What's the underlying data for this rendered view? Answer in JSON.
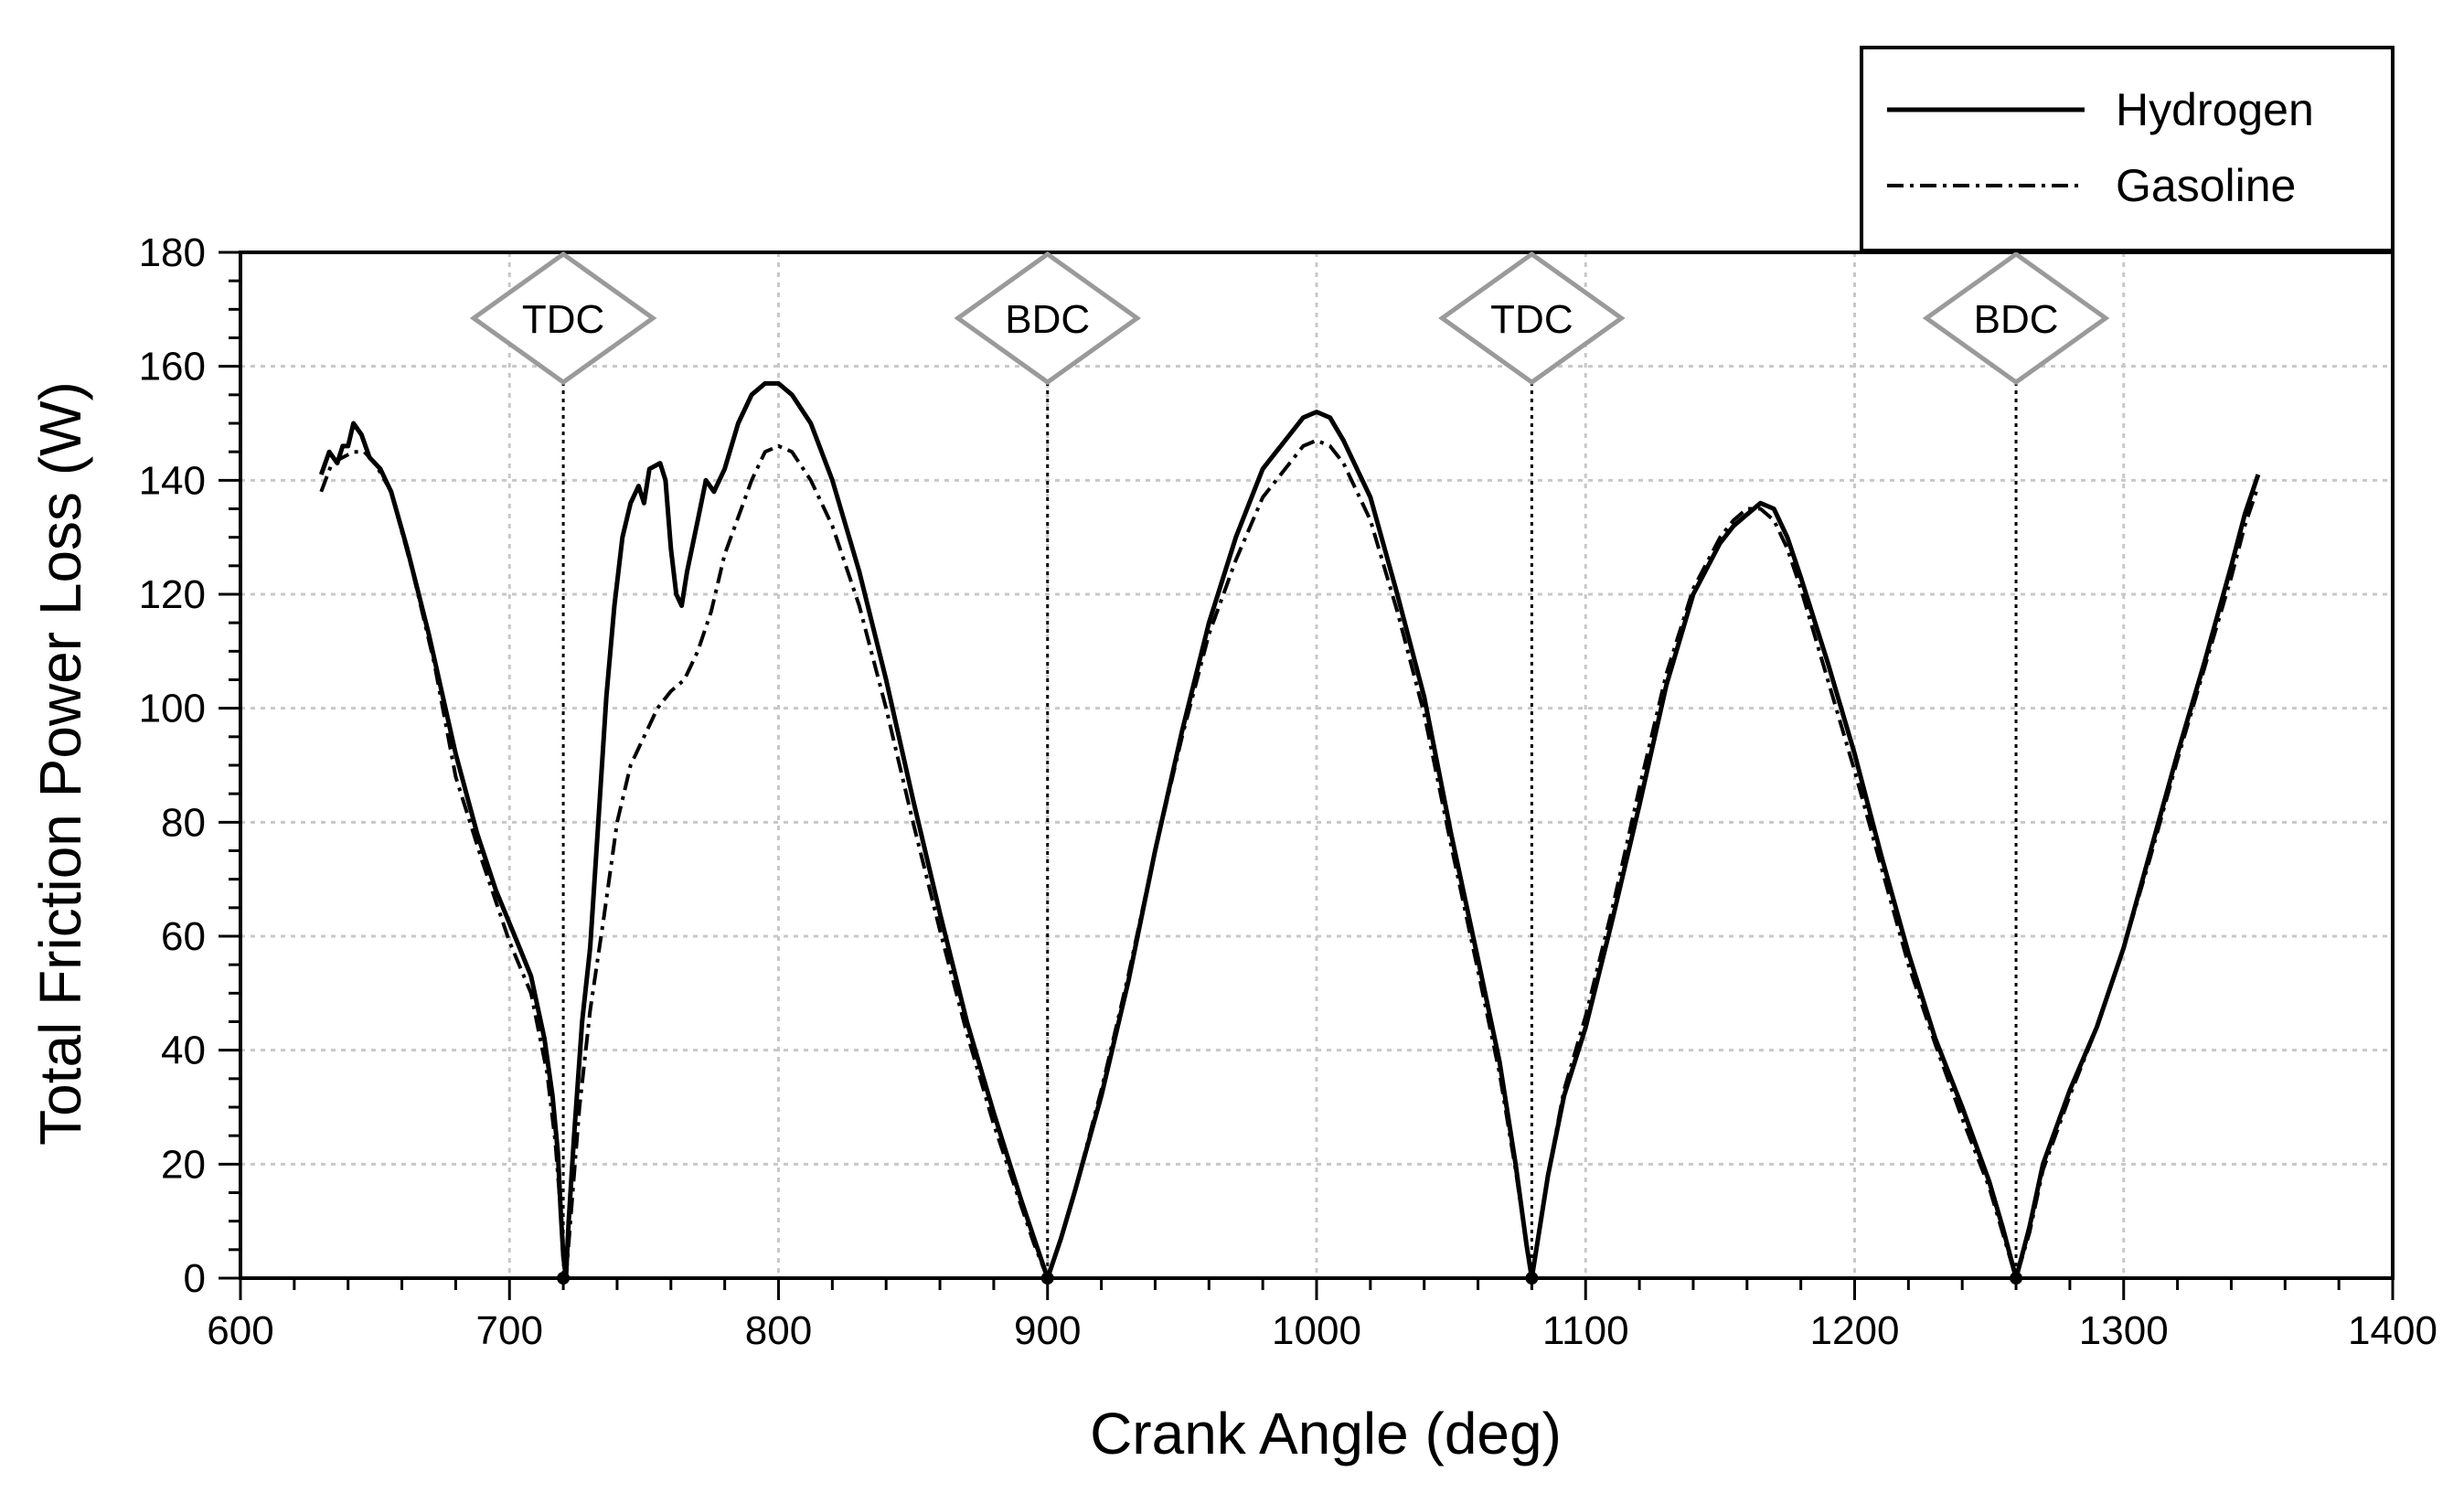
{
  "chart_data": {
    "type": "line",
    "title": "",
    "xlabel": "Crank Angle (deg)",
    "ylabel": "Total Friction Power Loss (W)",
    "xlim": [
      600,
      1400
    ],
    "ylim": [
      0,
      180
    ],
    "xticks": [
      600,
      700,
      800,
      900,
      1000,
      1100,
      1200,
      1300,
      1400
    ],
    "yticks": [
      0,
      20,
      40,
      60,
      80,
      100,
      120,
      140,
      160,
      180
    ],
    "grid": true,
    "legend_position": "top-right",
    "series": [
      {
        "name": "Hydrogen",
        "style": "solid",
        "color": "#000000",
        "points": [
          [
            630,
            141
          ],
          [
            633,
            145
          ],
          [
            636,
            143
          ],
          [
            638,
            146
          ],
          [
            640,
            146
          ],
          [
            642,
            150
          ],
          [
            645,
            148
          ],
          [
            648,
            144
          ],
          [
            652,
            142
          ],
          [
            656,
            138
          ],
          [
            662,
            128
          ],
          [
            670,
            113
          ],
          [
            680,
            92
          ],
          [
            688,
            78
          ],
          [
            695,
            68
          ],
          [
            702,
            60
          ],
          [
            708,
            53
          ],
          [
            713,
            42
          ],
          [
            716,
            32
          ],
          [
            718,
            22
          ],
          [
            719,
            12
          ],
          [
            720,
            4
          ],
          [
            721,
            0
          ],
          [
            722,
            10
          ],
          [
            724,
            25
          ],
          [
            727,
            45
          ],
          [
            730,
            58
          ],
          [
            733,
            80
          ],
          [
            736,
            102
          ],
          [
            739,
            118
          ],
          [
            742,
            130
          ],
          [
            745,
            136
          ],
          [
            748,
            139
          ],
          [
            750,
            136
          ],
          [
            752,
            142
          ],
          [
            756,
            143
          ],
          [
            758,
            140
          ],
          [
            760,
            128
          ],
          [
            762,
            120
          ],
          [
            764,
            118
          ],
          [
            766,
            124
          ],
          [
            770,
            133
          ],
          [
            773,
            140
          ],
          [
            776,
            138
          ],
          [
            780,
            142
          ],
          [
            785,
            150
          ],
          [
            790,
            155
          ],
          [
            795,
            157
          ],
          [
            800,
            157
          ],
          [
            805,
            155
          ],
          [
            812,
            150
          ],
          [
            820,
            140
          ],
          [
            830,
            124
          ],
          [
            840,
            105
          ],
          [
            850,
            84
          ],
          [
            860,
            64
          ],
          [
            870,
            45
          ],
          [
            880,
            29
          ],
          [
            890,
            14
          ],
          [
            895,
            7
          ],
          [
            900,
            0
          ],
          [
            905,
            7
          ],
          [
            910,
            15
          ],
          [
            920,
            32
          ],
          [
            930,
            52
          ],
          [
            940,
            75
          ],
          [
            950,
            96
          ],
          [
            960,
            115
          ],
          [
            970,
            130
          ],
          [
            980,
            142
          ],
          [
            990,
            148
          ],
          [
            995,
            151
          ],
          [
            1000,
            152
          ],
          [
            1005,
            151
          ],
          [
            1010,
            147
          ],
          [
            1020,
            137
          ],
          [
            1030,
            120
          ],
          [
            1040,
            102
          ],
          [
            1050,
            78
          ],
          [
            1060,
            56
          ],
          [
            1068,
            38
          ],
          [
            1074,
            20
          ],
          [
            1078,
            6
          ],
          [
            1080,
            0
          ],
          [
            1082,
            6
          ],
          [
            1086,
            18
          ],
          [
            1092,
            32
          ],
          [
            1100,
            44
          ],
          [
            1110,
            63
          ],
          [
            1120,
            83
          ],
          [
            1130,
            104
          ],
          [
            1140,
            120
          ],
          [
            1150,
            129
          ],
          [
            1155,
            132
          ],
          [
            1160,
            134
          ],
          [
            1165,
            136
          ],
          [
            1170,
            135
          ],
          [
            1175,
            130
          ],
          [
            1180,
            123
          ],
          [
            1190,
            108
          ],
          [
            1200,
            92
          ],
          [
            1210,
            74
          ],
          [
            1220,
            57
          ],
          [
            1230,
            42
          ],
          [
            1240,
            30
          ],
          [
            1250,
            17
          ],
          [
            1255,
            9
          ],
          [
            1260,
            0
          ],
          [
            1265,
            9
          ],
          [
            1270,
            20
          ],
          [
            1280,
            33
          ],
          [
            1290,
            44
          ],
          [
            1300,
            58
          ],
          [
            1310,
            75
          ],
          [
            1320,
            92
          ],
          [
            1330,
            108
          ],
          [
            1340,
            125
          ],
          [
            1345,
            134
          ],
          [
            1350,
            141
          ]
        ]
      },
      {
        "name": "Gasoline",
        "style": "dash-dot",
        "color": "#000000",
        "points": [
          [
            630,
            138
          ],
          [
            634,
            143
          ],
          [
            638,
            144
          ],
          [
            642,
            145
          ],
          [
            646,
            145
          ],
          [
            650,
            143
          ],
          [
            656,
            138
          ],
          [
            664,
            124
          ],
          [
            672,
            108
          ],
          [
            680,
            88
          ],
          [
            690,
            73
          ],
          [
            700,
            59
          ],
          [
            708,
            50
          ],
          [
            714,
            36
          ],
          [
            717,
            24
          ],
          [
            719,
            12
          ],
          [
            720,
            3
          ],
          [
            721,
            0
          ],
          [
            723,
            12
          ],
          [
            726,
            30
          ],
          [
            730,
            47
          ],
          [
            735,
            63
          ],
          [
            740,
            80
          ],
          [
            745,
            90
          ],
          [
            750,
            95
          ],
          [
            752,
            97
          ],
          [
            755,
            100
          ],
          [
            760,
            103
          ],
          [
            765,
            105
          ],
          [
            770,
            110
          ],
          [
            775,
            117
          ],
          [
            780,
            127
          ],
          [
            790,
            140
          ],
          [
            795,
            145
          ],
          [
            800,
            146
          ],
          [
            805,
            145
          ],
          [
            812,
            140
          ],
          [
            820,
            132
          ],
          [
            830,
            118
          ],
          [
            840,
            100
          ],
          [
            850,
            80
          ],
          [
            860,
            61
          ],
          [
            870,
            43
          ],
          [
            880,
            27
          ],
          [
            890,
            13
          ],
          [
            895,
            6
          ],
          [
            900,
            0
          ],
          [
            905,
            7
          ],
          [
            910,
            15
          ],
          [
            920,
            33
          ],
          [
            930,
            53
          ],
          [
            940,
            75
          ],
          [
            950,
            95
          ],
          [
            960,
            113
          ],
          [
            970,
            126
          ],
          [
            980,
            137
          ],
          [
            990,
            143
          ],
          [
            995,
            146
          ],
          [
            1000,
            147
          ],
          [
            1005,
            146
          ],
          [
            1010,
            143
          ],
          [
            1020,
            133
          ],
          [
            1030,
            117
          ],
          [
            1040,
            99
          ],
          [
            1050,
            76
          ],
          [
            1060,
            54
          ],
          [
            1068,
            36
          ],
          [
            1074,
            19
          ],
          [
            1078,
            6
          ],
          [
            1080,
            0
          ],
          [
            1082,
            6
          ],
          [
            1086,
            18
          ],
          [
            1092,
            33
          ],
          [
            1100,
            46
          ],
          [
            1110,
            65
          ],
          [
            1120,
            86
          ],
          [
            1130,
            106
          ],
          [
            1140,
            121
          ],
          [
            1150,
            130
          ],
          [
            1155,
            133
          ],
          [
            1160,
            135
          ],
          [
            1165,
            135
          ],
          [
            1170,
            133
          ],
          [
            1175,
            128
          ],
          [
            1180,
            121
          ],
          [
            1190,
            105
          ],
          [
            1200,
            89
          ],
          [
            1210,
            72
          ],
          [
            1220,
            55
          ],
          [
            1230,
            41
          ],
          [
            1240,
            28
          ],
          [
            1250,
            16
          ],
          [
            1255,
            8
          ],
          [
            1260,
            0
          ],
          [
            1265,
            8
          ],
          [
            1270,
            19
          ],
          [
            1280,
            32
          ],
          [
            1290,
            44
          ],
          [
            1300,
            58
          ],
          [
            1310,
            74
          ],
          [
            1320,
            91
          ],
          [
            1330,
            107
          ],
          [
            1340,
            123
          ],
          [
            1345,
            132
          ],
          [
            1350,
            139
          ]
        ]
      }
    ],
    "markers": [
      {
        "label": "TDC",
        "x": 720
      },
      {
        "label": "BDC",
        "x": 900
      },
      {
        "label": "TDC",
        "x": 1080
      },
      {
        "label": "BDC",
        "x": 1260
      }
    ]
  }
}
